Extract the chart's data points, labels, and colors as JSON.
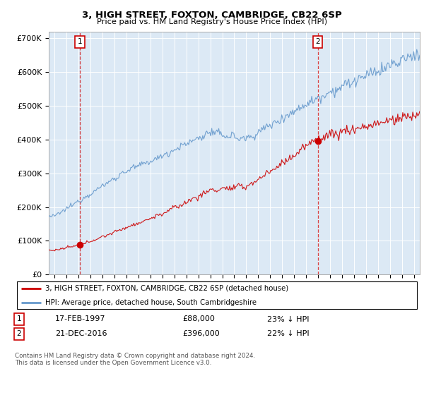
{
  "title": "3, HIGH STREET, FOXTON, CAMBRIDGE, CB22 6SP",
  "subtitle": "Price paid vs. HM Land Registry's House Price Index (HPI)",
  "background_color": "#dce9f5",
  "plot_bg_color": "#dce9f5",
  "ylim": [
    0,
    720000
  ],
  "yticks": [
    0,
    100000,
    200000,
    300000,
    400000,
    500000,
    600000,
    700000
  ],
  "xlim_start": 1994.5,
  "xlim_end": 2025.5,
  "sale1_date": 1997.12,
  "sale1_price": 88000,
  "sale2_date": 2016.97,
  "sale2_price": 396000,
  "legend_line1": "3, HIGH STREET, FOXTON, CAMBRIDGE, CB22 6SP (detached house)",
  "legend_line2": "HPI: Average price, detached house, South Cambridgeshire",
  "table_row1": [
    "1",
    "17-FEB-1997",
    "£88,000",
    "23% ↓ HPI"
  ],
  "table_row2": [
    "2",
    "21-DEC-2016",
    "£396,000",
    "22% ↓ HPI"
  ],
  "footnote": "Contains HM Land Registry data © Crown copyright and database right 2024.\nThis data is licensed under the Open Government Licence v3.0.",
  "red_color": "#cc0000",
  "blue_color": "#6699cc",
  "grid_color": "#ffffff",
  "dashed_line_color": "#cc0000"
}
